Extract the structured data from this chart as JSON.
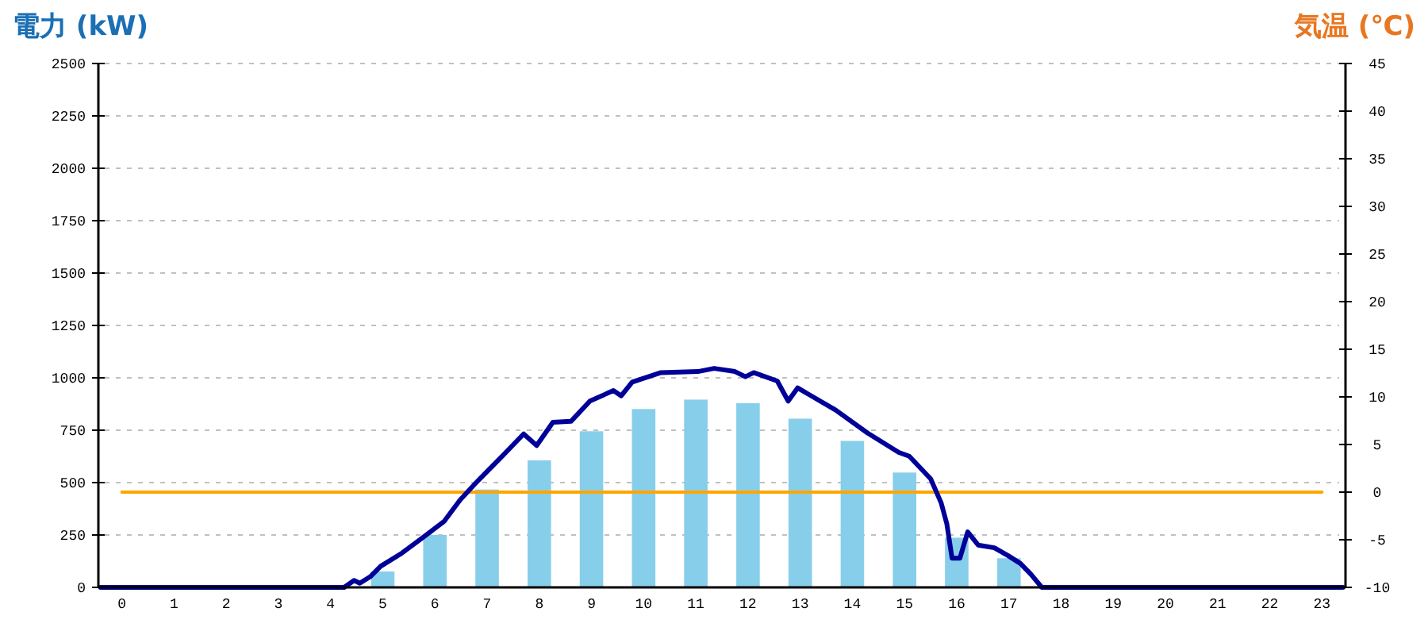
{
  "chart_data": {
    "type": "bar",
    "ylabel": "電力 (kW)",
    "y2label": "気温 (℃)",
    "x": [
      0,
      1,
      2,
      3,
      4,
      5,
      6,
      7,
      8,
      9,
      10,
      11,
      12,
      13,
      14,
      15,
      16,
      17,
      18,
      19,
      20,
      21,
      22,
      23
    ],
    "xlim": [
      -0.45,
      23.45
    ],
    "xticks": [
      0,
      1,
      2,
      3,
      4,
      5,
      6,
      7,
      8,
      9,
      10,
      11,
      12,
      13,
      14,
      15,
      16,
      17,
      18,
      19,
      20,
      21,
      22,
      23
    ],
    "ylim": [
      0,
      2500
    ],
    "yticks": [
      0,
      250,
      500,
      750,
      1000,
      1250,
      1500,
      1750,
      2000,
      2250,
      2500
    ],
    "y2lim": [
      -10,
      45
    ],
    "y2ticks": [
      -10,
      -5,
      0,
      5,
      10,
      15,
      20,
      25,
      30,
      35,
      40,
      45
    ],
    "grid": "y",
    "series": [
      {
        "color": "#87ceeb",
        "values": [
          0,
          0,
          0,
          0,
          0,
          76,
          250,
          467,
          606,
          745,
          851,
          896,
          879,
          805,
          699,
          548,
          237,
          139,
          0,
          0,
          0,
          0,
          0,
          0
        ]
      },
      {
        "type": "line",
        "color": "#000099",
        "x": [
          -0.41,
          4.26,
          4.45,
          4.56,
          4.76,
          4.96,
          5.37,
          5.78,
          6.18,
          6.48,
          6.79,
          6.99,
          7.29,
          7.7,
          7.95,
          8.26,
          8.61,
          8.97,
          9.42,
          9.57,
          9.78,
          10.33,
          11.04,
          11.35,
          11.75,
          11.95,
          12.11,
          12.56,
          12.77,
          12.95,
          13.68,
          14.29,
          14.89,
          15.09,
          15.5,
          15.7,
          15.81,
          15.91,
          16.06,
          16.21,
          16.41,
          16.72,
          16.98,
          17.22,
          17.42,
          17.63,
          23.4
        ],
        "values": [
          0,
          0,
          33,
          20,
          51,
          101,
          164,
          240,
          316,
          417,
          500,
          551,
          626,
          732,
          677,
          788,
          793,
          889,
          939,
          914,
          980,
          1025,
          1030,
          1045,
          1030,
          1005,
          1025,
          985,
          889,
          952,
          846,
          737,
          644,
          626,
          518,
          404,
          303,
          139,
          139,
          265,
          202,
          189,
          152,
          114,
          63,
          0,
          0
        ]
      },
      {
        "type": "line",
        "axis": "y2",
        "color": "#ffa500",
        "values": [
          0,
          0,
          0,
          0,
          0,
          0,
          0,
          0,
          0,
          0,
          0,
          0,
          0,
          0,
          0,
          0,
          0,
          0,
          0,
          0,
          0,
          0,
          0,
          0
        ]
      }
    ]
  }
}
